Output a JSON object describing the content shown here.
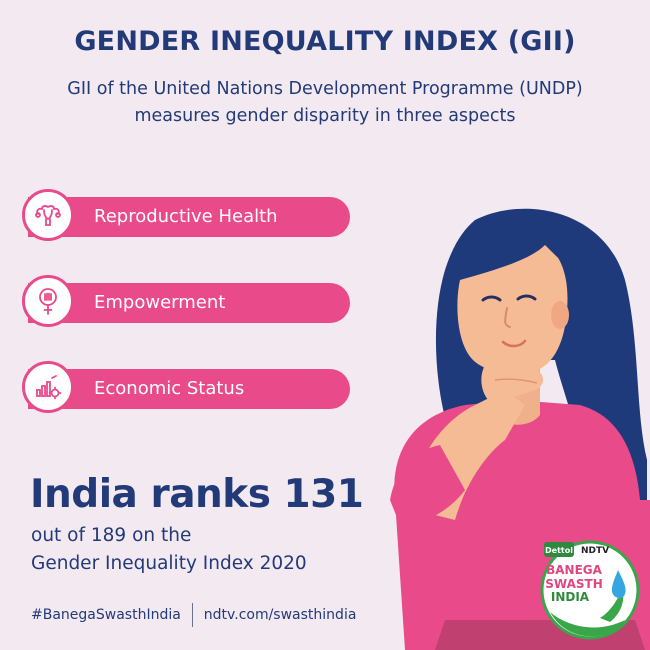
{
  "header": {
    "title": "GENDER INEQUALITY INDEX (GII)",
    "subtitle_line1": "GII of the United Nations Development Programme (UNDP)",
    "subtitle_line2": "measures gender disparity in three aspects"
  },
  "aspects": [
    {
      "label": "Reproductive Health",
      "icon": "uterus-icon"
    },
    {
      "label": "Empowerment",
      "icon": "female-power-fist-icon"
    },
    {
      "label": "Economic Status",
      "icon": "bar-chart-gear-icon"
    }
  ],
  "ranking": {
    "headline": "India ranks 131",
    "line1": "out of 189 on the",
    "line2": "Gender Inequality Index 2020"
  },
  "footer": {
    "hashtag": "#BanegaSwasthIndia",
    "url": "ndtv.com/swasthindia"
  },
  "logo": {
    "brand1": "Dettol",
    "brand2": "NDTV",
    "line1": "BANEGA",
    "line2": "SWASTH",
    "line3": "INDIA"
  },
  "colors": {
    "navy": "#223a78",
    "pink": "#e84a8a",
    "background": "#f3e9f1"
  }
}
